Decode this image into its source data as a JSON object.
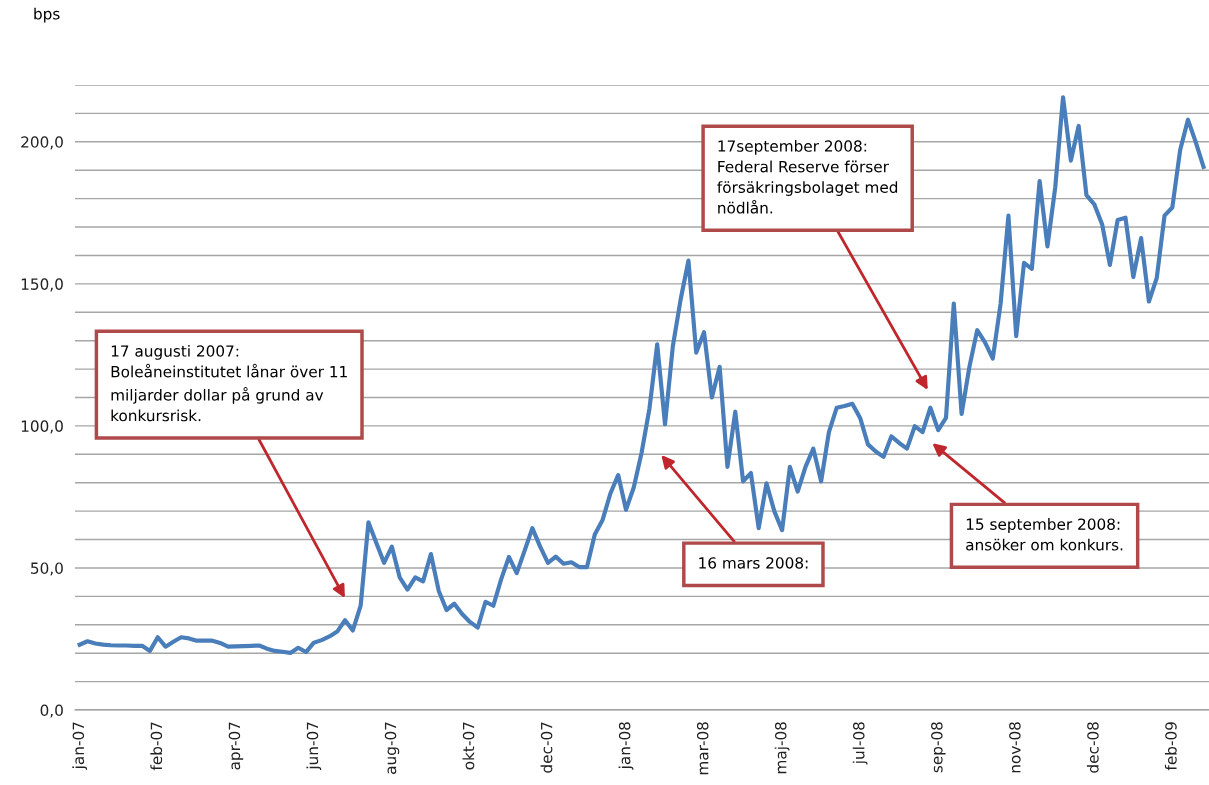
{
  "chart_data": {
    "type": "line",
    "ylabel": "bps",
    "categories": [
      "jan-07",
      null,
      null,
      null,
      null,
      null,
      null,
      null,
      null,
      null,
      "feb-07",
      null,
      null,
      null,
      null,
      null,
      null,
      null,
      null,
      null,
      "apr-07",
      null,
      null,
      null,
      null,
      null,
      null,
      null,
      null,
      null,
      "jun-07",
      null,
      null,
      null,
      null,
      null,
      null,
      null,
      null,
      null,
      "aug-07",
      null,
      null,
      null,
      null,
      null,
      null,
      null,
      null,
      null,
      "okt-07",
      null,
      null,
      null,
      null,
      null,
      null,
      null,
      null,
      null,
      "dec-07",
      null,
      null,
      null,
      null,
      null,
      null,
      null,
      null,
      null,
      "jan-08",
      null,
      null,
      null,
      null,
      null,
      null,
      null,
      null,
      null,
      "mar-08",
      null,
      null,
      null,
      null,
      null,
      null,
      null,
      null,
      null,
      "maj-08",
      null,
      null,
      null,
      null,
      null,
      null,
      null,
      null,
      null,
      "jul-08",
      null,
      null,
      null,
      null,
      null,
      null,
      null,
      null,
      null,
      "sep-08",
      null,
      null,
      null,
      null,
      null,
      null,
      null,
      null,
      null,
      "nov-08",
      null,
      null,
      null,
      null,
      null,
      null,
      null,
      null,
      null,
      "dec-08",
      null,
      null,
      null,
      null,
      null,
      null,
      null,
      null,
      null,
      "feb-09",
      null,
      null,
      null,
      null
    ],
    "series": [
      {
        "color": "#4a7ebb",
        "values": [
          23.0,
          24.2,
          23.4,
          23.0,
          22.8,
          22.7,
          22.7,
          22.6,
          22.6,
          20.8,
          25.6,
          22.3,
          24.0,
          25.6,
          25.2,
          24.4,
          24.4,
          24.4,
          23.6,
          22.3,
          22.4,
          22.5,
          22.6,
          22.7,
          21.6,
          20.8,
          20.5,
          20.1,
          21.9,
          20.4,
          23.7,
          24.6,
          25.9,
          27.6,
          31.6,
          28.0,
          36.7,
          66.1,
          58.9,
          51.8,
          57.5,
          46.7,
          42.4,
          46.7,
          45.3,
          54.9,
          42.0,
          35.2,
          37.4,
          33.8,
          31.0,
          29.0,
          38.1,
          36.7,
          46.0,
          53.9,
          48.2,
          56.0,
          64.0,
          57.5,
          51.8,
          54.0,
          51.5,
          52.0,
          50.3,
          50.3,
          61.8,
          66.9,
          76.2,
          82.7,
          70.5,
          78.4,
          90.6,
          106.0,
          128.7,
          100.6,
          128.0,
          144.5,
          158.2,
          125.8,
          133.0,
          110.0,
          120.8,
          85.6,
          105.0,
          80.5,
          83.4,
          64.0,
          79.8,
          70.0,
          63.3,
          85.6,
          76.9,
          85.6,
          92.0,
          80.5,
          97.8,
          106.4,
          107.0,
          107.8,
          102.8,
          93.5,
          91.0,
          89.1,
          96.3,
          94.0,
          92.0,
          99.9,
          97.8,
          106.4,
          98.5,
          102.8,
          143.1,
          104.2,
          120.8,
          133.7,
          129.4,
          123.7,
          143.1,
          174.0,
          131.6,
          157.4,
          155.3,
          186.2,
          163.2,
          184.0,
          215.7,
          193.4,
          205.6,
          181.2,
          178.0,
          171.0,
          156.7,
          172.5,
          173.3,
          152.4,
          166.1,
          143.8,
          152.0,
          174.0,
          176.9,
          197.0,
          207.8,
          199.9,
          191.2
        ]
      }
    ],
    "ylim": [
      0,
      220
    ],
    "yticks": [
      {
        "value": 0,
        "label": "0,0"
      },
      {
        "value": 10,
        "label": null
      },
      {
        "value": 20,
        "label": null
      },
      {
        "value": 30,
        "label": null
      },
      {
        "value": 40,
        "label": null
      },
      {
        "value": 50,
        "label": "50,0"
      },
      {
        "value": 60,
        "label": null
      },
      {
        "value": 70,
        "label": null
      },
      {
        "value": 80,
        "label": null
      },
      {
        "value": 90,
        "label": null
      },
      {
        "value": 100,
        "label": "100,0"
      },
      {
        "value": 110,
        "label": null
      },
      {
        "value": 120,
        "label": null
      },
      {
        "value": 130,
        "label": null
      },
      {
        "value": 140,
        "label": null
      },
      {
        "value": 150,
        "label": "150,0"
      },
      {
        "value": 160,
        "label": null
      },
      {
        "value": 170,
        "label": null
      },
      {
        "value": 180,
        "label": null
      },
      {
        "value": 190,
        "label": null
      },
      {
        "value": 200,
        "label": "200,0"
      },
      {
        "value": 210,
        "label": null
      },
      {
        "value": 220,
        "label": null
      }
    ],
    "grid": "y",
    "marker": "none",
    "line_style": "solid",
    "annotations": [
      "17 augusti 2007:\nBoleåneinstitutet lånar över 11\nmiljarder dollar på grund av\nkonkursrisk.",
      "16 mars 2008:",
      "15 september 2008:\nansöker om konkurs.",
      "17september 2008:\nFederal Reserve förser\nförsäkringsbolaget med\nnödlån."
    ]
  }
}
